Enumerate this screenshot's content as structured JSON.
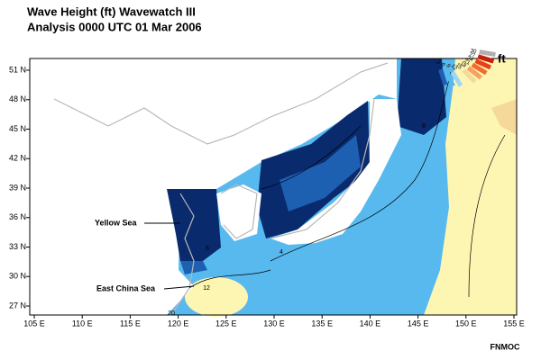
{
  "header": {
    "title": "Wave Height (ft) Wavewatch III",
    "subtitle": "Analysis 0000 UTC 01 Mar 2006"
  },
  "map": {
    "lat_labels": [
      "51 N",
      "48 N",
      "45 N",
      "42 N",
      "39 N",
      "36 N",
      "33 N",
      "30 N",
      "27 N"
    ],
    "lon_labels": [
      "105 E",
      "110 E",
      "115 E",
      "120 E",
      "125 E",
      "130 E",
      "135 E",
      "140 E",
      "145 E",
      "150 E",
      "155 E"
    ],
    "annotations": [
      "Yellow Sea",
      "East China Sea"
    ],
    "contour_labels": [
      "8",
      "6",
      "4",
      "12",
      "20"
    ]
  },
  "legend": {
    "unit": "ft",
    "levels": [
      "30",
      "27",
      "24",
      "21",
      "18",
      "15",
      "12",
      "9",
      "6",
      "3"
    ]
  },
  "credit": "FNMOC"
}
